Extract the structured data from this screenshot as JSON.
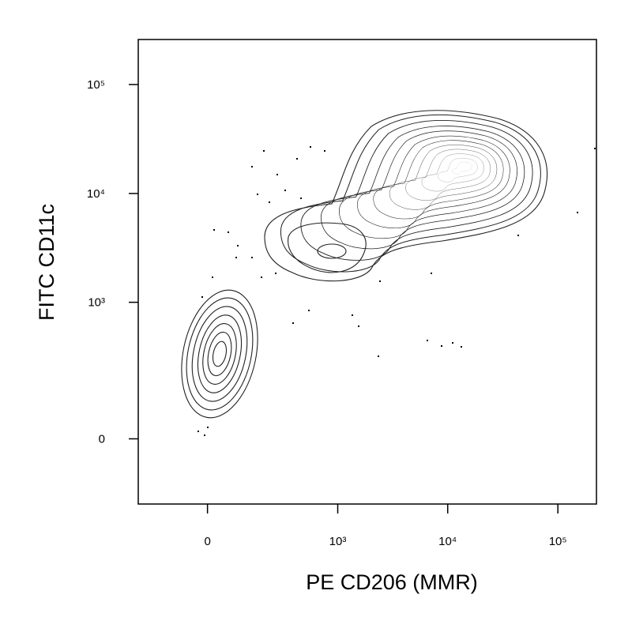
{
  "chart_data": {
    "type": "contour",
    "x_label": "PE CD206 (MMR)",
    "y_label": "FITC CD11c",
    "xlim": [
      -265,
      224000
    ],
    "ylim": [
      -208,
      259000
    ],
    "xticks": [
      0,
      {
        "value": 1000,
        "label": "10³"
      },
      {
        "value": 10000,
        "label": "10⁴"
      },
      {
        "value": 100000,
        "label": "10⁵"
      }
    ],
    "yticks": [
      0,
      {
        "value": 1000,
        "label": "10³"
      },
      {
        "value": 10000,
        "label": "10⁴"
      },
      {
        "value": 100000,
        "label": "10⁵"
      }
    ]
  }
}
